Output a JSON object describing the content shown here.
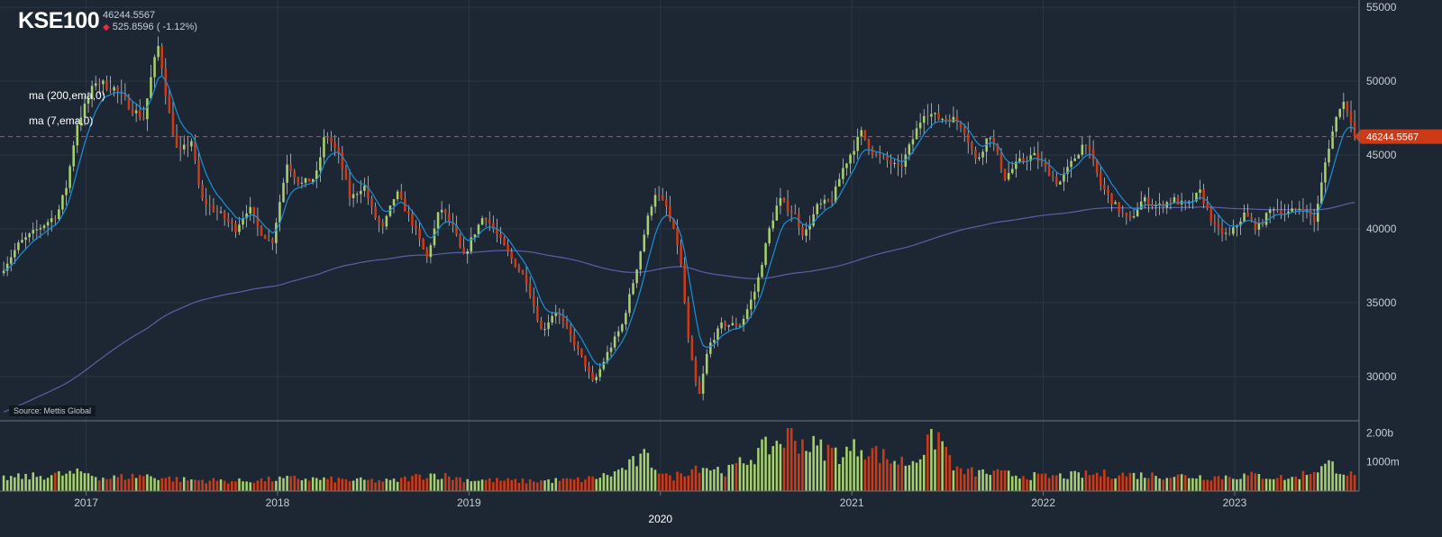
{
  "header": {
    "symbol": "KSE100",
    "last_price": "46244.5567",
    "change_text": "525.8596 ( -1.12%)"
  },
  "indicators": [
    {
      "label": "ma (200,ema,0)",
      "color": "#5b5fa8"
    },
    {
      "label": "ma (7,ema,0)",
      "color": "#1c8fd8"
    }
  ],
  "source_label": "Source: Mettis Global",
  "colors": {
    "background": "#1d2733",
    "grid": "#2a3644",
    "up": "#a6d16d",
    "down": "#cf3a16",
    "price_line": "#e0453a",
    "price_tag": "#cf3a16"
  },
  "chart_data": {
    "type": "candlestick",
    "symbol": "KSE100",
    "price_axis": {
      "min": 27000,
      "max": 55500,
      "ticks": [
        30000,
        35000,
        40000,
        45000,
        50000,
        55000
      ],
      "tick_labels": [
        "30000",
        "35000",
        "40000",
        "45000",
        "50000",
        "55000"
      ]
    },
    "volume_axis": {
      "max": 2200000000,
      "ticks": [
        1000000000,
        2000000000
      ],
      "tick_labels": [
        "1000m",
        "2.00b"
      ]
    },
    "x_axis": {
      "start": 2016.55,
      "end": 2023.65,
      "ticks": [
        2017,
        2018,
        2019,
        2020,
        2021,
        2022,
        2023
      ],
      "tick_labels": [
        "2017",
        "2018",
        "2019",
        "2020",
        "2021",
        "2022",
        "2023"
      ],
      "highlight_label": "2020"
    },
    "last_price_line": 46244.5567,
    "last_price_label": "46244.5567",
    "ma_long_label": "ma (200,ema,0)",
    "ma_short_label": "ma (7,ema,0)",
    "close_anchors": [
      [
        2016.55,
        37000
      ],
      [
        2016.65,
        39000
      ],
      [
        2016.75,
        40000
      ],
      [
        2016.85,
        41000
      ],
      [
        2016.9,
        43000
      ],
      [
        2016.95,
        47000
      ],
      [
        2017.05,
        50000
      ],
      [
        2017.15,
        49500
      ],
      [
        2017.25,
        48000
      ],
      [
        2017.3,
        47500
      ],
      [
        2017.35,
        51000
      ],
      [
        2017.38,
        52500
      ],
      [
        2017.43,
        48000
      ],
      [
        2017.48,
        45000
      ],
      [
        2017.55,
        46000
      ],
      [
        2017.6,
        42000
      ],
      [
        2017.7,
        41000
      ],
      [
        2017.78,
        40000
      ],
      [
        2017.85,
        41500
      ],
      [
        2017.9,
        40000
      ],
      [
        2017.97,
        39000
      ],
      [
        2018.05,
        44500
      ],
      [
        2018.12,
        43000
      ],
      [
        2018.2,
        43500
      ],
      [
        2018.25,
        46500
      ],
      [
        2018.32,
        45000
      ],
      [
        2018.38,
        42000
      ],
      [
        2018.45,
        43000
      ],
      [
        2018.5,
        41000
      ],
      [
        2018.55,
        40000
      ],
      [
        2018.62,
        42500
      ],
      [
        2018.7,
        40500
      ],
      [
        2018.78,
        38000
      ],
      [
        2018.85,
        41500
      ],
      [
        2018.92,
        40000
      ],
      [
        2018.97,
        38000
      ],
      [
        2019.02,
        39500
      ],
      [
        2019.08,
        41000
      ],
      [
        2019.15,
        39500
      ],
      [
        2019.22,
        38000
      ],
      [
        2019.3,
        36500
      ],
      [
        2019.38,
        33000
      ],
      [
        2019.45,
        34500
      ],
      [
        2019.52,
        33000
      ],
      [
        2019.6,
        31000
      ],
      [
        2019.65,
        29500
      ],
      [
        2019.72,
        31500
      ],
      [
        2019.8,
        33500
      ],
      [
        2019.87,
        37000
      ],
      [
        2019.93,
        40500
      ],
      [
        2019.97,
        42500
      ],
      [
        2020.03,
        41500
      ],
      [
        2020.1,
        38500
      ],
      [
        2020.15,
        32000
      ],
      [
        2020.2,
        28500
      ],
      [
        2020.25,
        32000
      ],
      [
        2020.32,
        33500
      ],
      [
        2020.42,
        33500
      ],
      [
        2020.5,
        36000
      ],
      [
        2020.57,
        40000
      ],
      [
        2020.62,
        42000
      ],
      [
        2020.7,
        41000
      ],
      [
        2020.75,
        39500
      ],
      [
        2020.82,
        41500
      ],
      [
        2020.9,
        42000
      ],
      [
        2020.95,
        44000
      ],
      [
        2021.05,
        46500
      ],
      [
        2021.12,
        45000
      ],
      [
        2021.2,
        44500
      ],
      [
        2021.25,
        44000
      ],
      [
        2021.3,
        45500
      ],
      [
        2021.38,
        48000
      ],
      [
        2021.45,
        47500
      ],
      [
        2021.52,
        47500
      ],
      [
        2021.58,
        47000
      ],
      [
        2021.65,
        44500
      ],
      [
        2021.72,
        46500
      ],
      [
        2021.8,
        43500
      ],
      [
        2021.87,
        44500
      ],
      [
        2021.95,
        45000
      ],
      [
        2022.02,
        44000
      ],
      [
        2022.08,
        43000
      ],
      [
        2022.15,
        44500
      ],
      [
        2022.22,
        46000
      ],
      [
        2022.3,
        43000
      ],
      [
        2022.38,
        41500
      ],
      [
        2022.45,
        40500
      ],
      [
        2022.52,
        42000
      ],
      [
        2022.6,
        41500
      ],
      [
        2022.68,
        42000
      ],
      [
        2022.75,
        41500
      ],
      [
        2022.82,
        42500
      ],
      [
        2022.9,
        40000
      ],
      [
        2022.97,
        39500
      ],
      [
        2023.05,
        41000
      ],
      [
        2023.12,
        40000
      ],
      [
        2023.2,
        41500
      ],
      [
        2023.27,
        41000
      ],
      [
        2023.35,
        41500
      ],
      [
        2023.42,
        40500
      ],
      [
        2023.48,
        45000
      ],
      [
        2023.52,
        47000
      ],
      [
        2023.56,
        48800
      ],
      [
        2023.6,
        47800
      ],
      [
        2023.64,
        46244.5567
      ]
    ],
    "volume_anchors": [
      [
        2016.55,
        0.45
      ],
      [
        2016.8,
        0.55
      ],
      [
        2017.0,
        0.65
      ],
      [
        2017.1,
        0.45
      ],
      [
        2017.3,
        0.55
      ],
      [
        2017.5,
        0.4
      ],
      [
        2017.8,
        0.35
      ],
      [
        2018.1,
        0.45
      ],
      [
        2018.3,
        0.4
      ],
      [
        2018.6,
        0.35
      ],
      [
        2018.8,
        0.6
      ],
      [
        2019.0,
        0.4
      ],
      [
        2019.3,
        0.35
      ],
      [
        2019.6,
        0.4
      ],
      [
        2019.75,
        0.6
      ],
      [
        2019.92,
        1.2
      ],
      [
        2020.05,
        0.45
      ],
      [
        2020.2,
        0.9
      ],
      [
        2020.35,
        0.7
      ],
      [
        2020.55,
        1.5
      ],
      [
        2020.68,
        1.95
      ],
      [
        2020.78,
        1.6
      ],
      [
        2020.95,
        1.3
      ],
      [
        2021.05,
        1.6
      ],
      [
        2021.2,
        1.1
      ],
      [
        2021.3,
        1.0
      ],
      [
        2021.4,
        1.6
      ],
      [
        2021.45,
        2.0
      ],
      [
        2021.55,
        0.7
      ],
      [
        2021.8,
        0.6
      ],
      [
        2022.0,
        0.5
      ],
      [
        2022.3,
        0.6
      ],
      [
        2022.6,
        0.55
      ],
      [
        2022.9,
        0.5
      ],
      [
        2023.1,
        0.55
      ],
      [
        2023.3,
        0.45
      ],
      [
        2023.5,
        0.95
      ],
      [
        2023.64,
        0.45
      ]
    ]
  }
}
